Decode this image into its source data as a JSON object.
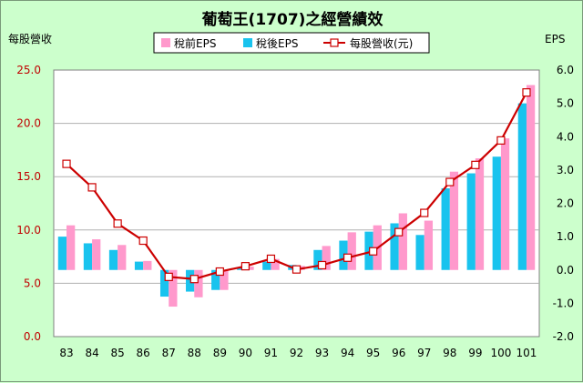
{
  "colors": {
    "background": "#ccffcc",
    "plot_background": "#ffffff",
    "pretax": "#ff99cc",
    "aftertax": "#19c3ee",
    "revenue_line": "#cc0000",
    "marker_fill": "#ffffff",
    "left_tick": "#c00000"
  },
  "chart_data": {
    "type": "bar",
    "title": "葡萄王(1707)之經營績效",
    "ylabel_left": "每股營收",
    "ylabel_right": "EPS",
    "categories": [
      "83",
      "84",
      "85",
      "86",
      "87",
      "88",
      "89",
      "90",
      "91",
      "92",
      "93",
      "94",
      "95",
      "96",
      "97",
      "98",
      "99",
      "100",
      "101"
    ],
    "ylim_left": [
      0,
      25
    ],
    "yticks_left": [
      "0.0",
      "5.0",
      "10.0",
      "15.0",
      "20.0",
      "25.0"
    ],
    "ylim_right": [
      -2,
      6
    ],
    "yticks_right": [
      "-2.0",
      "-1.0",
      "0.0",
      "1.0",
      "2.0",
      "3.0",
      "4.0",
      "5.0",
      "6.0"
    ],
    "grid": true,
    "legend_position": "top",
    "series": [
      {
        "name": "稅前EPS",
        "axis": "right",
        "kind": "bar",
        "values": [
          1.34,
          0.92,
          0.75,
          0.27,
          -1.1,
          -0.82,
          -0.6,
          0.1,
          0.33,
          0.12,
          0.72,
          1.13,
          1.34,
          1.7,
          1.48,
          2.95,
          3.35,
          3.95,
          5.55
        ]
      },
      {
        "name": "稅後EPS",
        "axis": "right",
        "kind": "bar",
        "values": [
          1.0,
          0.8,
          0.6,
          0.25,
          -0.8,
          -0.65,
          -0.6,
          0.07,
          0.25,
          0.15,
          0.6,
          0.88,
          1.15,
          1.4,
          1.05,
          2.45,
          2.9,
          3.4,
          5.0
        ]
      },
      {
        "name": "每股營收(元)",
        "axis": "left",
        "kind": "line",
        "values": [
          16.2,
          14.0,
          10.6,
          9.0,
          5.6,
          5.4,
          6.1,
          6.6,
          7.3,
          6.3,
          6.7,
          7.4,
          8.0,
          9.8,
          11.6,
          14.5,
          16.1,
          18.4,
          22.9
        ]
      }
    ]
  }
}
